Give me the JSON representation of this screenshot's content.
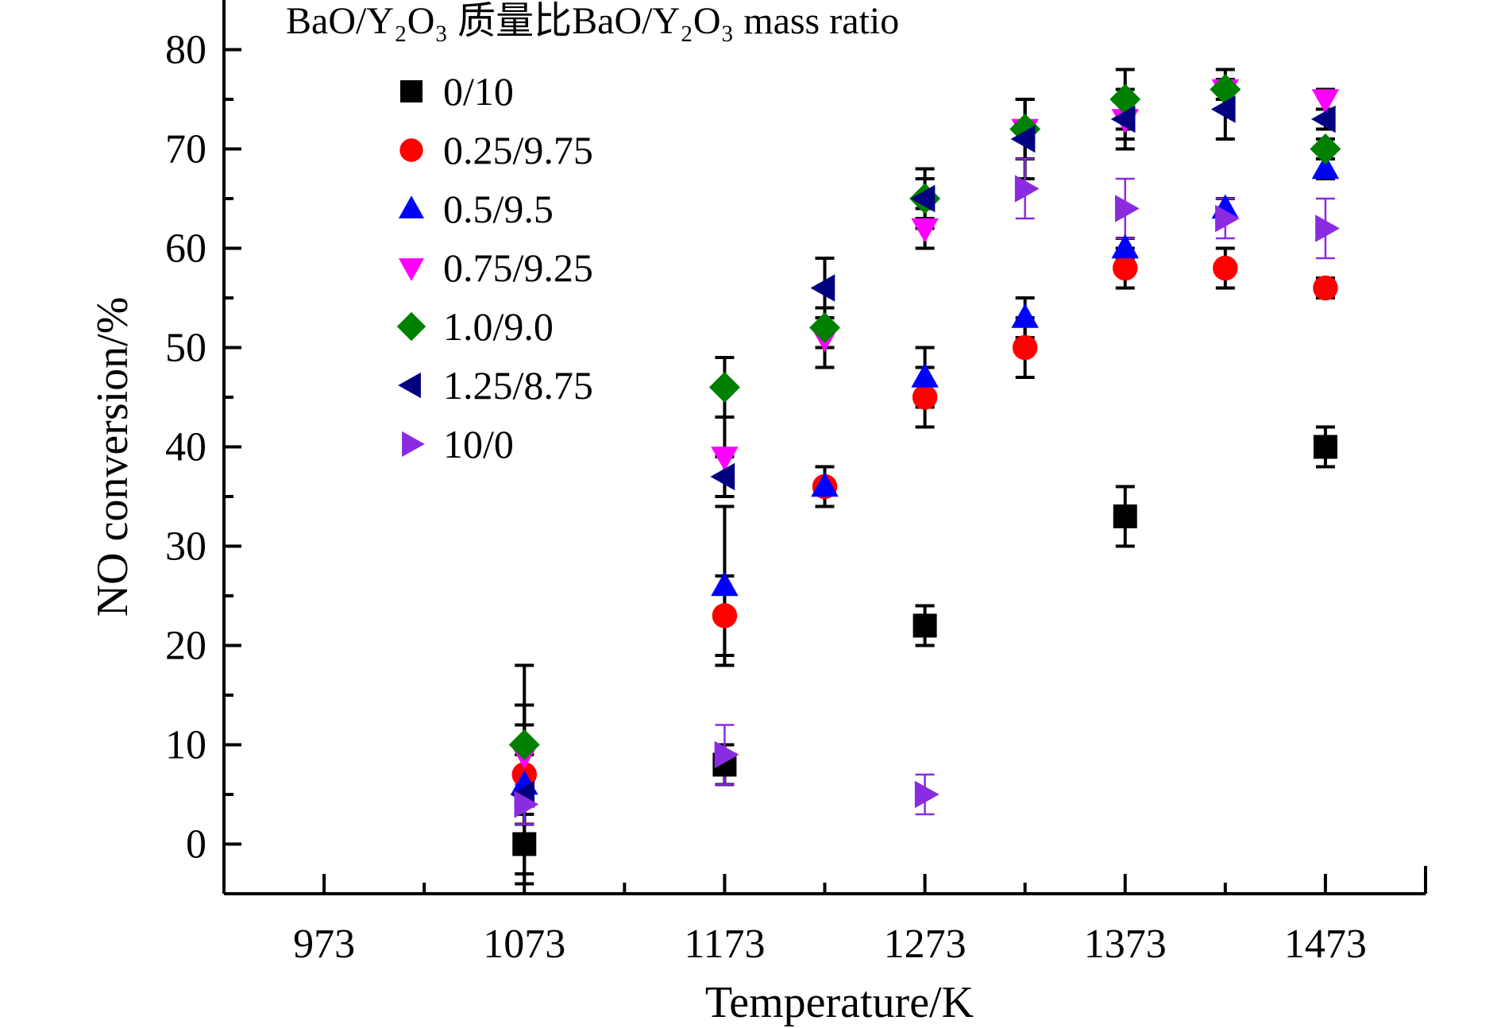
{
  "chart_data": {
    "type": "scatter",
    "xlabel": "Temperature/K",
    "ylabel": "NO conversion/%",
    "xlim": [
      923,
      1523
    ],
    "ylim": [
      -5,
      85
    ],
    "x_ticks": [
      973,
      1073,
      1173,
      1273,
      1373,
      1473
    ],
    "y_ticks": [
      0,
      10,
      20,
      30,
      40,
      50,
      60,
      70,
      80
    ],
    "grid": false,
    "legend": {
      "title": "BaO/Y₂O₃ 质量比BaO/Y₂O₃ mass ratio",
      "placement": "top-left"
    },
    "colors": {
      "0/10": "#000000",
      "0.25/9.75": "#ff0000",
      "0.5/9.5": "#0000ff",
      "0.75/9.25": "#ff00ff",
      "1.0/9.0": "#008000",
      "1.25/8.75": "#000080",
      "10/0": "#8a2be2"
    },
    "series": [
      {
        "name": "0/10",
        "marker": "square",
        "points": [
          {
            "x": 1073,
            "y": 0,
            "err": 3
          },
          {
            "x": 1173,
            "y": 8,
            "err": 2
          },
          {
            "x": 1273,
            "y": 22,
            "err": 2
          },
          {
            "x": 1373,
            "y": 33,
            "err": 3
          },
          {
            "x": 1473,
            "y": 40,
            "err": 2
          }
        ]
      },
      {
        "name": "0.25/9.75",
        "marker": "circle",
        "points": [
          {
            "x": 1073,
            "y": 7,
            "err": 5
          },
          {
            "x": 1173,
            "y": 23,
            "err": 4
          },
          {
            "x": 1223,
            "y": 36,
            "err": 2
          },
          {
            "x": 1273,
            "y": 45,
            "err": 3
          },
          {
            "x": 1323,
            "y": 50,
            "err": 3
          },
          {
            "x": 1373,
            "y": 58,
            "err": 2
          },
          {
            "x": 1423,
            "y": 58,
            "err": 2
          },
          {
            "x": 1473,
            "y": 56,
            "err": 1
          }
        ]
      },
      {
        "name": "0.5/9.5",
        "marker": "triangle-up",
        "points": [
          {
            "x": 1073,
            "y": 6,
            "err": 3
          },
          {
            "x": 1173,
            "y": 26,
            "err": 8
          },
          {
            "x": 1223,
            "y": 36,
            "err": 2
          },
          {
            "x": 1273,
            "y": 47,
            "err": 3
          },
          {
            "x": 1323,
            "y": 53,
            "err": 2
          },
          {
            "x": 1373,
            "y": 60,
            "err": 1
          },
          {
            "x": 1423,
            "y": 64,
            "err": 1
          },
          {
            "x": 1473,
            "y": 68,
            "err": 1
          }
        ]
      },
      {
        "name": "0.75/9.25",
        "marker": "triangle-down",
        "points": [
          {
            "x": 1073,
            "y": 9,
            "err": 5
          },
          {
            "x": 1173,
            "y": 39,
            "err": 4
          },
          {
            "x": 1223,
            "y": 51,
            "err": 3
          },
          {
            "x": 1273,
            "y": 62,
            "err": 2
          },
          {
            "x": 1323,
            "y": 72,
            "err": 3
          },
          {
            "x": 1373,
            "y": 73,
            "err": 2
          },
          {
            "x": 1423,
            "y": 76,
            "err": 1
          },
          {
            "x": 1473,
            "y": 75,
            "err": 1
          }
        ]
      },
      {
        "name": "1.0/9.0",
        "marker": "diamond",
        "points": [
          {
            "x": 1073,
            "y": 10,
            "err": 8
          },
          {
            "x": 1173,
            "y": 46,
            "err": 3
          },
          {
            "x": 1223,
            "y": 52,
            "err": 2
          },
          {
            "x": 1273,
            "y": 65,
            "err": 2
          },
          {
            "x": 1323,
            "y": 72,
            "err": 3
          },
          {
            "x": 1373,
            "y": 75,
            "err": 3
          },
          {
            "x": 1423,
            "y": 76,
            "err": 2
          },
          {
            "x": 1473,
            "y": 70,
            "err": 1
          }
        ]
      },
      {
        "name": "1.25/8.75",
        "marker": "triangle-left",
        "points": [
          {
            "x": 1073,
            "y": 5,
            "err": 9
          },
          {
            "x": 1173,
            "y": 37,
            "err": 2
          },
          {
            "x": 1223,
            "y": 56,
            "err": 3
          },
          {
            "x": 1273,
            "y": 65,
            "err": 3
          },
          {
            "x": 1323,
            "y": 71,
            "err": 4
          },
          {
            "x": 1373,
            "y": 73,
            "err": 3
          },
          {
            "x": 1423,
            "y": 74,
            "err": 3
          },
          {
            "x": 1473,
            "y": 73,
            "err": 1
          }
        ]
      },
      {
        "name": "10/0",
        "marker": "triangle-right",
        "points": [
          {
            "x": 1073,
            "y": 4,
            "err": 2
          },
          {
            "x": 1173,
            "y": 9,
            "err": 3
          },
          {
            "x": 1273,
            "y": 5,
            "err": 2
          },
          {
            "x": 1323,
            "y": 66,
            "err": 3
          },
          {
            "x": 1373,
            "y": 64,
            "err": 3
          },
          {
            "x": 1423,
            "y": 63,
            "err": 2
          },
          {
            "x": 1473,
            "y": 62,
            "err": 3
          }
        ]
      }
    ]
  }
}
